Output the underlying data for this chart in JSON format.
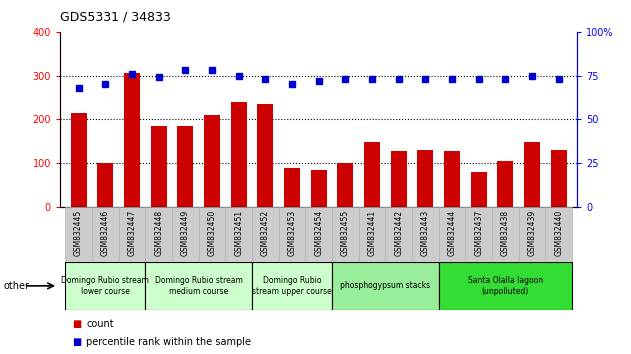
{
  "title": "GDS5331 / 34833",
  "samples": [
    "GSM832445",
    "GSM832446",
    "GSM832447",
    "GSM832448",
    "GSM832449",
    "GSM832450",
    "GSM832451",
    "GSM832452",
    "GSM832453",
    "GSM832454",
    "GSM832455",
    "GSM832441",
    "GSM832442",
    "GSM832443",
    "GSM832444",
    "GSM832437",
    "GSM832438",
    "GSM832439",
    "GSM832440"
  ],
  "counts": [
    215,
    100,
    305,
    185,
    185,
    210,
    240,
    235,
    90,
    85,
    100,
    148,
    127,
    130,
    127,
    80,
    105,
    148,
    130
  ],
  "percentiles": [
    68,
    70,
    76,
    74,
    78,
    78,
    75,
    73,
    70,
    72,
    73,
    73,
    73,
    73,
    73,
    73,
    73,
    75,
    73
  ],
  "bar_color": "#cc0000",
  "dot_color": "#0000cc",
  "ylim_left": [
    0,
    400
  ],
  "ylim_right": [
    0,
    100
  ],
  "yticks_left": [
    0,
    100,
    200,
    300,
    400
  ],
  "yticks_right": [
    0,
    25,
    50,
    75,
    100
  ],
  "groups": [
    {
      "label": "Domingo Rubio stream\nlower course",
      "start": 0,
      "end": 3,
      "color": "#ccffcc"
    },
    {
      "label": "Domingo Rubio stream\nmedium course",
      "start": 3,
      "end": 7,
      "color": "#ccffcc"
    },
    {
      "label": "Domingo Rubio\nstream upper course",
      "start": 7,
      "end": 10,
      "color": "#ccffcc"
    },
    {
      "label": "phosphogypsum stacks",
      "start": 10,
      "end": 14,
      "color": "#99ee99"
    },
    {
      "label": "Santa Olalla lagoon\n(unpolluted)",
      "start": 14,
      "end": 19,
      "color": "#33dd33"
    }
  ],
  "legend_count_label": "count",
  "legend_percentile_label": "percentile rank within the sample",
  "other_label": "other",
  "xtick_bg": "#cccccc",
  "xtick_border": "#aaaaaa"
}
